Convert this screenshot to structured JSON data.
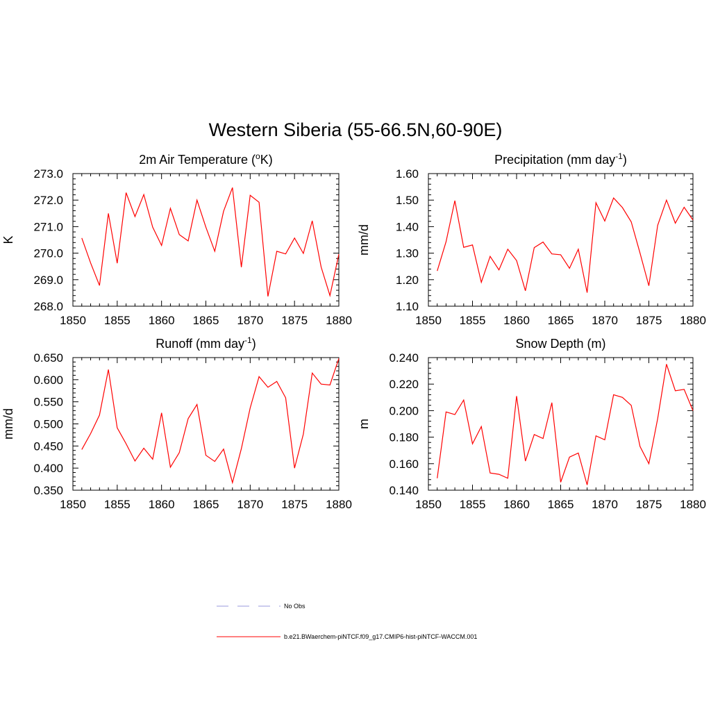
{
  "figure": {
    "title": "Western Siberia (55-66.5N,60-90E)",
    "line_color": "#ff0000",
    "obs_color": "#9999dd"
  },
  "legend": {
    "items": [
      {
        "label": "No Obs",
        "style": "dashed",
        "color": "#9999dd"
      },
      {
        "label": "b.e21.BWaerchem-piNTCF.f09_g17.CMIP6-hist-piNTCF-WACCM.001",
        "style": "solid",
        "color": "#ff0000"
      }
    ]
  },
  "chart_data": [
    {
      "type": "line",
      "title_parts": [
        "2m Air Temperature (",
        "o",
        "K)"
      ],
      "title_sup_index": 1,
      "ylabel": "K",
      "xlim": [
        1850,
        1880
      ],
      "ylim": [
        268.0,
        273.0
      ],
      "xticks": [
        1850,
        1855,
        1860,
        1865,
        1870,
        1875,
        1880
      ],
      "yticks": [
        "268.0",
        "269.0",
        "270.0",
        "271.0",
        "272.0",
        "273.0"
      ],
      "grid": false,
      "x": [
        1851,
        1852,
        1853,
        1854,
        1855,
        1856,
        1857,
        1858,
        1859,
        1860,
        1861,
        1862,
        1863,
        1864,
        1865,
        1866,
        1867,
        1868,
        1869,
        1870,
        1871,
        1872,
        1873,
        1874,
        1875,
        1876,
        1877,
        1878,
        1879,
        1880
      ],
      "series": [
        {
          "name": "b.e21.BWaerchem-piNTCF.f09_g17.CMIP6-hist-piNTCF-WACCM.001",
          "values": [
            270.57,
            269.63,
            268.78,
            271.5,
            269.62,
            272.28,
            271.38,
            272.21,
            270.98,
            270.29,
            271.69,
            270.7,
            270.46,
            272.0,
            270.98,
            270.07,
            271.58,
            272.47,
            269.47,
            272.18,
            271.92,
            268.37,
            270.07,
            269.97,
            270.57,
            269.99,
            271.22,
            269.48,
            268.4,
            269.96
          ]
        }
      ]
    },
    {
      "type": "line",
      "title_parts": [
        "Precipitation (mm day",
        "-1",
        ")"
      ],
      "title_sup_index": 1,
      "ylabel": "mm/d",
      "xlim": [
        1850,
        1880
      ],
      "ylim": [
        1.1,
        1.6
      ],
      "xticks": [
        1850,
        1855,
        1860,
        1865,
        1870,
        1875,
        1880
      ],
      "yticks": [
        "1.10",
        "1.20",
        "1.30",
        "1.40",
        "1.50",
        "1.60"
      ],
      "grid": false,
      "x": [
        1851,
        1852,
        1853,
        1854,
        1855,
        1856,
        1857,
        1858,
        1859,
        1860,
        1861,
        1862,
        1863,
        1864,
        1865,
        1866,
        1867,
        1868,
        1869,
        1870,
        1871,
        1872,
        1873,
        1874,
        1875,
        1876,
        1877,
        1878,
        1879,
        1880
      ],
      "series": [
        {
          "name": "b.e21.BWaerchem-piNTCF.f09_g17.CMIP6-hist-piNTCF-WACCM.001",
          "values": [
            1.233,
            1.343,
            1.498,
            1.322,
            1.331,
            1.19,
            1.288,
            1.237,
            1.315,
            1.272,
            1.158,
            1.321,
            1.342,
            1.297,
            1.294,
            1.243,
            1.315,
            1.151,
            1.49,
            1.421,
            1.508,
            1.472,
            1.418,
            1.3,
            1.177,
            1.405,
            1.5,
            1.413,
            1.473,
            1.425
          ]
        }
      ]
    },
    {
      "type": "line",
      "title_parts": [
        "Runoff (mm day",
        "-1",
        ")"
      ],
      "title_sup_index": 1,
      "ylabel": "mm/d",
      "xlim": [
        1850,
        1880
      ],
      "ylim": [
        0.35,
        0.65
      ],
      "xticks": [
        1850,
        1855,
        1860,
        1865,
        1870,
        1875,
        1880
      ],
      "yticks": [
        "0.350",
        "0.400",
        "0.450",
        "0.500",
        "0.550",
        "0.600",
        "0.650"
      ],
      "grid": false,
      "x": [
        1851,
        1852,
        1853,
        1854,
        1855,
        1856,
        1857,
        1858,
        1859,
        1860,
        1861,
        1862,
        1863,
        1864,
        1865,
        1866,
        1867,
        1868,
        1869,
        1870,
        1871,
        1872,
        1873,
        1874,
        1875,
        1876,
        1877,
        1878,
        1879,
        1880
      ],
      "series": [
        {
          "name": "b.e21.BWaerchem-piNTCF.f09_g17.CMIP6-hist-piNTCF-WACCM.001",
          "values": [
            0.442,
            0.478,
            0.52,
            0.623,
            0.491,
            0.455,
            0.416,
            0.445,
            0.42,
            0.525,
            0.402,
            0.435,
            0.512,
            0.544,
            0.429,
            0.415,
            0.443,
            0.367,
            0.444,
            0.536,
            0.607,
            0.583,
            0.596,
            0.559,
            0.4,
            0.477,
            0.615,
            0.59,
            0.588,
            0.648
          ]
        }
      ]
    },
    {
      "type": "line",
      "title_parts": [
        "Snow Depth (m)"
      ],
      "title_sup_index": -1,
      "ylabel": "m",
      "xlim": [
        1850,
        1880
      ],
      "ylim": [
        0.14,
        0.24
      ],
      "xticks": [
        1850,
        1855,
        1860,
        1865,
        1870,
        1875,
        1880
      ],
      "yticks": [
        "0.140",
        "0.160",
        "0.180",
        "0.200",
        "0.220",
        "0.240"
      ],
      "grid": false,
      "x": [
        1851,
        1852,
        1853,
        1854,
        1855,
        1856,
        1857,
        1858,
        1859,
        1860,
        1861,
        1862,
        1863,
        1864,
        1865,
        1866,
        1867,
        1868,
        1869,
        1870,
        1871,
        1872,
        1873,
        1874,
        1875,
        1876,
        1877,
        1878,
        1879,
        1880
      ],
      "series": [
        {
          "name": "b.e21.BWaerchem-piNTCF.f09_g17.CMIP6-hist-piNTCF-WACCM.001",
          "values": [
            0.149,
            0.199,
            0.197,
            0.208,
            0.175,
            0.188,
            0.153,
            0.152,
            0.149,
            0.211,
            0.162,
            0.182,
            0.179,
            0.206,
            0.146,
            0.165,
            0.168,
            0.144,
            0.181,
            0.178,
            0.212,
            0.21,
            0.204,
            0.173,
            0.16,
            0.194,
            0.235,
            0.215,
            0.216,
            0.2
          ]
        }
      ]
    }
  ]
}
